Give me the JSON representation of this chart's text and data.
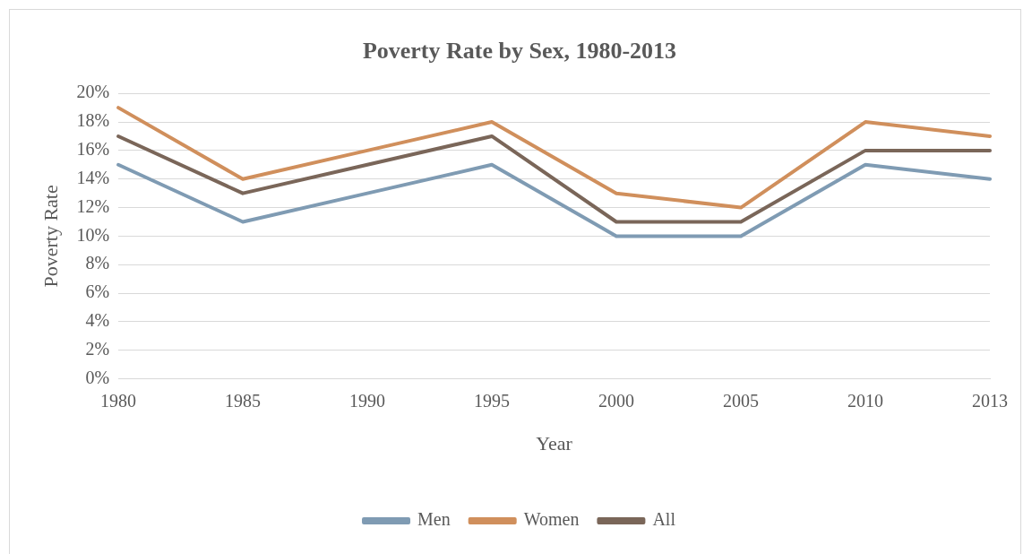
{
  "chart_data": {
    "type": "line",
    "title": "Poverty Rate by Sex, 1980-2013",
    "xlabel": "Year",
    "ylabel": "Poverty Rate",
    "categories": [
      "1980",
      "1985",
      "1990",
      "1995",
      "2000",
      "2005",
      "2010",
      "2013"
    ],
    "series": [
      {
        "name": "Men",
        "color": "#7f9bb3",
        "values": [
          15,
          11,
          13,
          15,
          10,
          10,
          15,
          14
        ]
      },
      {
        "name": "Women",
        "color": "#d08f5c",
        "values": [
          19,
          14,
          16,
          18,
          13,
          12,
          18,
          17
        ]
      },
      {
        "name": "All",
        "color": "#7a6659",
        "values": [
          17,
          13,
          15,
          17,
          11,
          11,
          16,
          16
        ]
      }
    ],
    "ylim": [
      0,
      20
    ],
    "yticks": [
      {
        "value": 0,
        "label": "0%"
      },
      {
        "value": 2,
        "label": "2%"
      },
      {
        "value": 4,
        "label": "4%"
      },
      {
        "value": 6,
        "label": "6%"
      },
      {
        "value": 8,
        "label": "8%"
      },
      {
        "value": 10,
        "label": "10%"
      },
      {
        "value": 12,
        "label": "12%"
      },
      {
        "value": 14,
        "label": "14%"
      },
      {
        "value": 16,
        "label": "16%"
      },
      {
        "value": 18,
        "label": "18%"
      },
      {
        "value": 20,
        "label": "20%"
      }
    ],
    "grid": "y",
    "legend": "bottom",
    "marker": "none",
    "line_style": "solid"
  }
}
